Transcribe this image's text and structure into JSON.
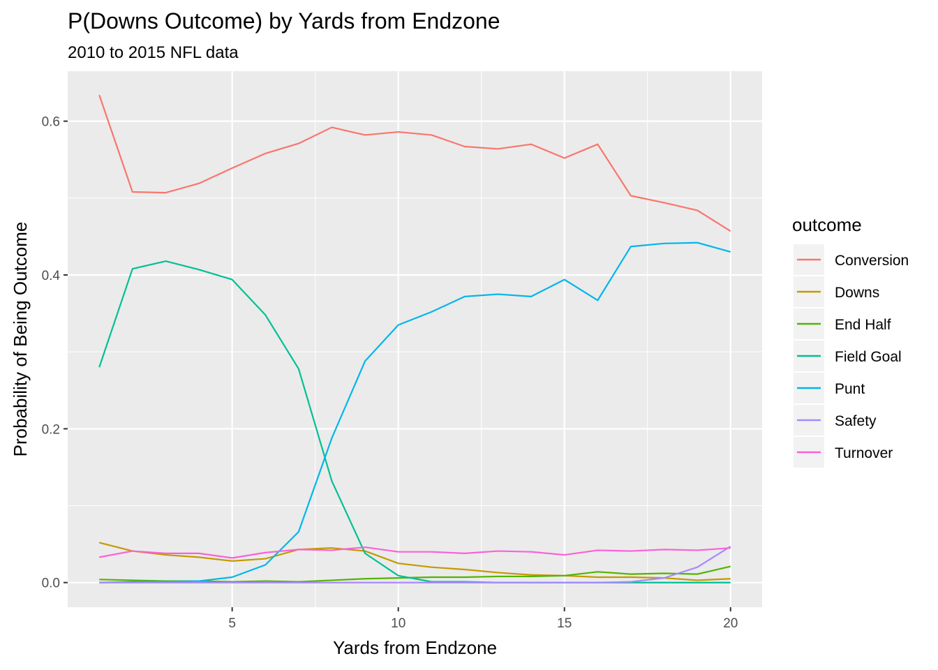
{
  "chart_data": {
    "type": "line",
    "title": "P(Downs Outcome) by Yards from Endzone",
    "subtitle": "2010 to 2015 NFL data",
    "xlabel": "Yards from Endzone",
    "ylabel": "Probability of Being Outcome",
    "xlim": [
      0.05,
      20.95
    ],
    "ylim": [
      -0.032,
      0.665
    ],
    "x_ticks": [
      5,
      10,
      15,
      20
    ],
    "x_tick_labels": [
      "5",
      "10",
      "15",
      "20"
    ],
    "y_ticks": [
      0.0,
      0.2,
      0.4,
      0.6
    ],
    "y_tick_labels": [
      "0.0",
      "0.2",
      "0.4",
      "0.6"
    ],
    "grid": true,
    "legend_title": "outcome",
    "legend_position": "right",
    "x": [
      1,
      2,
      3,
      4,
      5,
      6,
      7,
      8,
      9,
      10,
      11,
      12,
      13,
      14,
      15,
      16,
      17,
      18,
      19,
      20
    ],
    "series": [
      {
        "name": "Conversion",
        "color": "#F8766D",
        "values": [
          0.634,
          0.508,
          0.507,
          0.519,
          0.539,
          0.558,
          0.571,
          0.592,
          0.582,
          0.586,
          0.582,
          0.567,
          0.564,
          0.57,
          0.552,
          0.57,
          0.503,
          0.494,
          0.484,
          0.457
        ]
      },
      {
        "name": "Downs",
        "color": "#C49A00",
        "values": [
          0.052,
          0.041,
          0.036,
          0.033,
          0.028,
          0.031,
          0.043,
          0.045,
          0.041,
          0.025,
          0.02,
          0.017,
          0.013,
          0.01,
          0.009,
          0.007,
          0.007,
          0.006,
          0.003,
          0.005
        ]
      },
      {
        "name": "End Half",
        "color": "#53B400",
        "values": [
          0.004,
          0.003,
          0.002,
          0.002,
          0.001,
          0.002,
          0.001,
          0.003,
          0.005,
          0.006,
          0.007,
          0.007,
          0.008,
          0.008,
          0.009,
          0.014,
          0.011,
          0.012,
          0.011,
          0.021
        ]
      },
      {
        "name": "Field Goal",
        "color": "#00C094",
        "values": [
          0.28,
          0.408,
          0.418,
          0.407,
          0.394,
          0.348,
          0.278,
          0.132,
          0.038,
          0.009,
          0.001,
          0.001,
          0.0,
          0.0,
          0.0,
          0.0,
          0.0,
          0.0,
          0.0,
          0.0
        ]
      },
      {
        "name": "Punt",
        "color": "#00B6EB",
        "values": [
          0.0,
          0.001,
          0.001,
          0.002,
          0.007,
          0.023,
          0.066,
          0.188,
          0.288,
          0.335,
          0.352,
          0.372,
          0.375,
          0.372,
          0.394,
          0.367,
          0.437,
          0.441,
          0.442,
          0.43
        ]
      },
      {
        "name": "Safety",
        "color": "#A58AFF",
        "values": [
          0.0,
          0.0,
          0.0,
          0.0,
          0.0,
          0.0,
          0.0,
          0.0,
          0.0,
          0.0,
          0.0,
          0.0,
          0.0,
          0.0,
          0.0,
          0.0,
          0.001,
          0.006,
          0.02,
          0.047
        ]
      },
      {
        "name": "Turnover",
        "color": "#FB61D7",
        "values": [
          0.033,
          0.041,
          0.038,
          0.038,
          0.032,
          0.039,
          0.043,
          0.042,
          0.046,
          0.04,
          0.04,
          0.038,
          0.041,
          0.04,
          0.036,
          0.042,
          0.041,
          0.043,
          0.042,
          0.045
        ]
      }
    ]
  }
}
